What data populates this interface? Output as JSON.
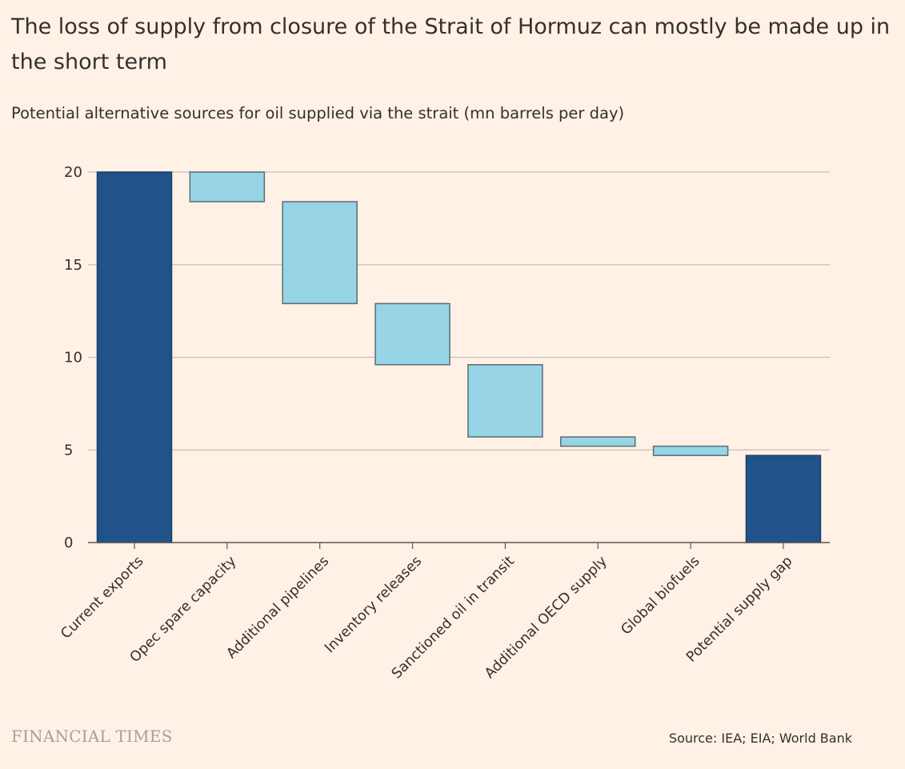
{
  "title": "The loss of supply from closure of the Strait of Hormuz can mostly be made up in the short term",
  "subtitle": "Potential alternative sources for oil supplied via the strait (mn barrels per day)",
  "source": "Source: IEA; EIA; World Bank",
  "brand": "FINANCIAL TIMES",
  "colors": {
    "background": "#fff1e5",
    "total_bar": "#1f538a",
    "step_bar": "#96d4e6",
    "gridline": "#c9bfb6",
    "text": "#33302e"
  },
  "chart_data": {
    "type": "bar",
    "subtype": "waterfall",
    "categories": [
      "Current exports",
      "Opec spare capacity",
      "Additional pipelines",
      "Inventory releases",
      "Sanctioned oil in transit",
      "Additional OECD supply",
      "Global biofuels",
      "Potential supply gap"
    ],
    "bars": [
      {
        "category": "Current exports",
        "kind": "total",
        "low": 0,
        "high": 20
      },
      {
        "category": "Opec spare capacity",
        "kind": "step",
        "low": 18.4,
        "high": 20
      },
      {
        "category": "Additional pipelines",
        "kind": "step",
        "low": 12.9,
        "high": 18.4
      },
      {
        "category": "Inventory releases",
        "kind": "step",
        "low": 9.6,
        "high": 12.9
      },
      {
        "category": "Sanctioned oil in transit",
        "kind": "step",
        "low": 5.7,
        "high": 9.6
      },
      {
        "category": "Additional OECD supply",
        "kind": "step",
        "low": 5.2,
        "high": 5.7
      },
      {
        "category": "Global biofuels",
        "kind": "step",
        "low": 4.7,
        "high": 5.2
      },
      {
        "category": "Potential supply gap",
        "kind": "total",
        "low": 0,
        "high": 4.7
      }
    ],
    "yticks": [
      0,
      5,
      10,
      15,
      20
    ],
    "ylim": [
      0,
      20
    ],
    "xlabel": "",
    "ylabel": "",
    "grid": true,
    "legend": "none"
  }
}
